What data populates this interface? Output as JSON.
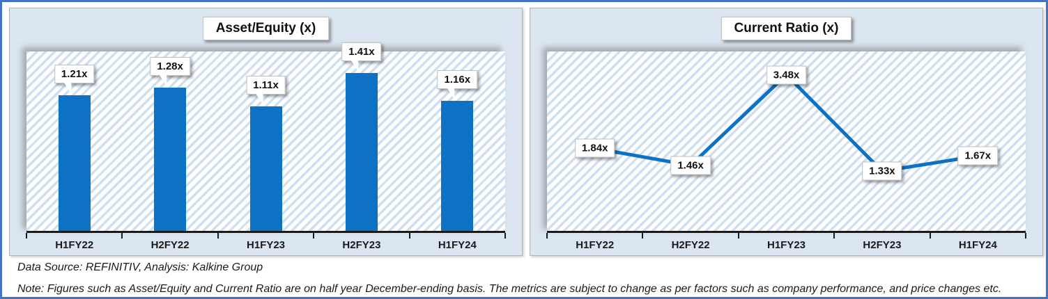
{
  "frame": {
    "accent_color": "#4472C4",
    "panel_bg": "#DCE6F1",
    "series_color": "#0E72C4",
    "hatch_color": "#CFE0F2"
  },
  "footer": {
    "source_line": "Data Source: REFINITIV, Analysis: Kalkine Group",
    "note_line": "Note: Figures such as Asset/Equity and Current Ratio are on half year December-ending basis. The metrics are subject to change as per factors such as company performance, and price changes etc."
  },
  "chart_data": [
    {
      "type": "bar",
      "title": "Asset/Equity (x)",
      "categories": [
        "H1FY22",
        "H2FY22",
        "H1FY23",
        "H2FY23",
        "H1FY24"
      ],
      "values": [
        1.21,
        1.28,
        1.11,
        1.41,
        1.16
      ],
      "labels": [
        "1.21x",
        "1.28x",
        "1.11x",
        "1.41x",
        "1.16x"
      ],
      "xlabel": "",
      "ylabel": "",
      "ylim": [
        0,
        1.6
      ],
      "grid": false,
      "legend": false,
      "label_style": "white-callout-with-tail-above-bar"
    },
    {
      "type": "line",
      "title": "Current Ratio (x)",
      "categories": [
        "H1FY22",
        "H2FY22",
        "H1FY23",
        "H2FY23",
        "H1FY24"
      ],
      "values": [
        1.84,
        1.46,
        3.48,
        1.33,
        1.67
      ],
      "labels": [
        "1.84x",
        "1.46x",
        "3.48x",
        "1.33x",
        "1.67x"
      ],
      "xlabel": "",
      "ylabel": "",
      "ylim": [
        0,
        4
      ],
      "grid": false,
      "legend": false,
      "label_style": "white-box-centered-on-point"
    }
  ]
}
